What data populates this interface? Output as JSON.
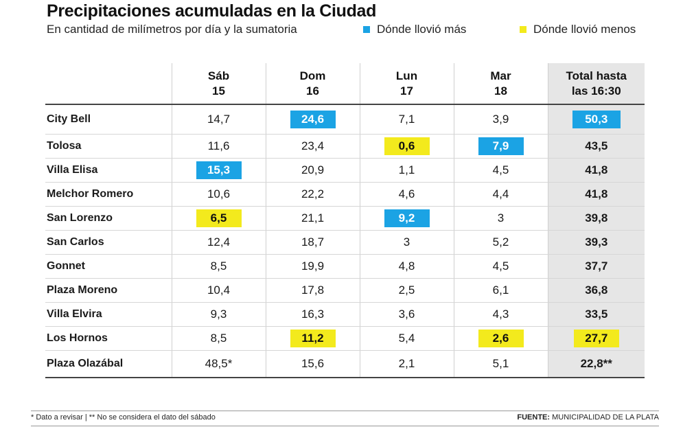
{
  "chart_data": {
    "type": "table",
    "title": "Precipitaciones acumuladas en la Ciudad",
    "subtitle": "En cantidad de milímetros por día y la sumatoria",
    "legend": [
      {
        "label": "Dónde llovió más",
        "color": "#1ba3e4"
      },
      {
        "label": "Dónde llovió menos",
        "color": "#f3ea1d"
      }
    ],
    "columns": [
      {
        "line1": "Sáb",
        "line2": "15"
      },
      {
        "line1": "Dom",
        "line2": "16"
      },
      {
        "line1": "Lun",
        "line2": "17"
      },
      {
        "line1": "Mar",
        "line2": "18"
      },
      {
        "line1": "Total hasta",
        "line2": "las 16:30"
      }
    ],
    "rows": [
      {
        "place": "City Bell",
        "values": [
          "14,7",
          "24,6",
          "7,1",
          "3,9",
          "50,3"
        ],
        "highlight": [
          "",
          "more",
          "",
          "",
          "more"
        ]
      },
      {
        "place": "Tolosa",
        "values": [
          "11,6",
          "23,4",
          "0,6",
          "7,9",
          "43,5"
        ],
        "highlight": [
          "",
          "",
          "less",
          "more",
          ""
        ]
      },
      {
        "place": "Villa Elisa",
        "values": [
          "15,3",
          "20,9",
          "1,1",
          "4,5",
          "41,8"
        ],
        "highlight": [
          "more",
          "",
          "",
          "",
          ""
        ]
      },
      {
        "place": "Melchor Romero",
        "values": [
          "10,6",
          "22,2",
          "4,6",
          "4,4",
          "41,8"
        ],
        "highlight": [
          "",
          "",
          "",
          "",
          ""
        ]
      },
      {
        "place": "San Lorenzo",
        "values": [
          "6,5",
          "21,1",
          "9,2",
          "3",
          "39,8"
        ],
        "highlight": [
          "less",
          "",
          "more",
          "",
          ""
        ]
      },
      {
        "place": "San Carlos",
        "values": [
          "12,4",
          "18,7",
          "3",
          "5,2",
          "39,3"
        ],
        "highlight": [
          "",
          "",
          "",
          "",
          ""
        ]
      },
      {
        "place": "Gonnet",
        "values": [
          "8,5",
          "19,9",
          "4,8",
          "4,5",
          "37,7"
        ],
        "highlight": [
          "",
          "",
          "",
          "",
          ""
        ]
      },
      {
        "place": "Plaza Moreno",
        "values": [
          "10,4",
          "17,8",
          "2,5",
          "6,1",
          "36,8"
        ],
        "highlight": [
          "",
          "",
          "",
          "",
          ""
        ]
      },
      {
        "place": "Villa Elvira",
        "values": [
          "9,3",
          "16,3",
          "3,6",
          "4,3",
          "33,5"
        ],
        "highlight": [
          "",
          "",
          "",
          "",
          ""
        ]
      },
      {
        "place": "Los Hornos",
        "values": [
          "8,5",
          "11,2",
          "5,4",
          "2,6",
          "27,7"
        ],
        "highlight": [
          "",
          "less",
          "",
          "less",
          "less"
        ]
      },
      {
        "place": "Plaza Olazábal",
        "values": [
          "48,5*",
          "15,6",
          "2,1",
          "5,1",
          "22,8**"
        ],
        "highlight": [
          "",
          "",
          "",
          "",
          ""
        ]
      }
    ],
    "footnote": "* Dato a revisar | ** No se considera el dato del sábado",
    "source_label": "FUENTE:",
    "source_text": "MUNICIPALIDAD DE LA PLATA"
  }
}
